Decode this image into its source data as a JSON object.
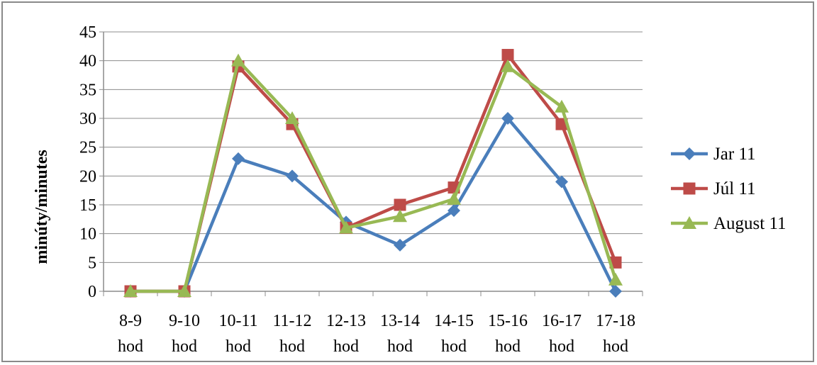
{
  "chart_data": {
    "type": "line",
    "title": "",
    "xlabel": "",
    "ylabel": "minúty/minutes",
    "categories": [
      [
        "8-9",
        "hod"
      ],
      [
        "9-10",
        "hod"
      ],
      [
        "10-11",
        "hod"
      ],
      [
        "11-12",
        "hod"
      ],
      [
        "12-13",
        "hod"
      ],
      [
        "13-14",
        "hod"
      ],
      [
        "14-15",
        "hod"
      ],
      [
        "15-16",
        "hod"
      ],
      [
        "16-17",
        "hod"
      ],
      [
        "17-18",
        "hod"
      ]
    ],
    "ylim": [
      0,
      45
    ],
    "yticks": [
      0,
      5,
      10,
      15,
      20,
      25,
      30,
      35,
      40,
      45
    ],
    "grid": true,
    "legend_position": "right",
    "series": [
      {
        "name": "Jar 11",
        "color": "#4a7ebb",
        "marker": "diamond",
        "values": [
          0,
          0,
          23,
          20,
          12,
          8,
          14,
          30,
          19,
          0
        ]
      },
      {
        "name": "Júl 11",
        "color": "#be4b48",
        "marker": "square",
        "values": [
          0,
          0,
          39,
          29,
          11,
          15,
          18,
          41,
          29,
          5
        ]
      },
      {
        "name": "August 11",
        "color": "#98b954",
        "marker": "triangle",
        "values": [
          0,
          0,
          40,
          30,
          11,
          13,
          16,
          39,
          32,
          2
        ]
      }
    ]
  }
}
